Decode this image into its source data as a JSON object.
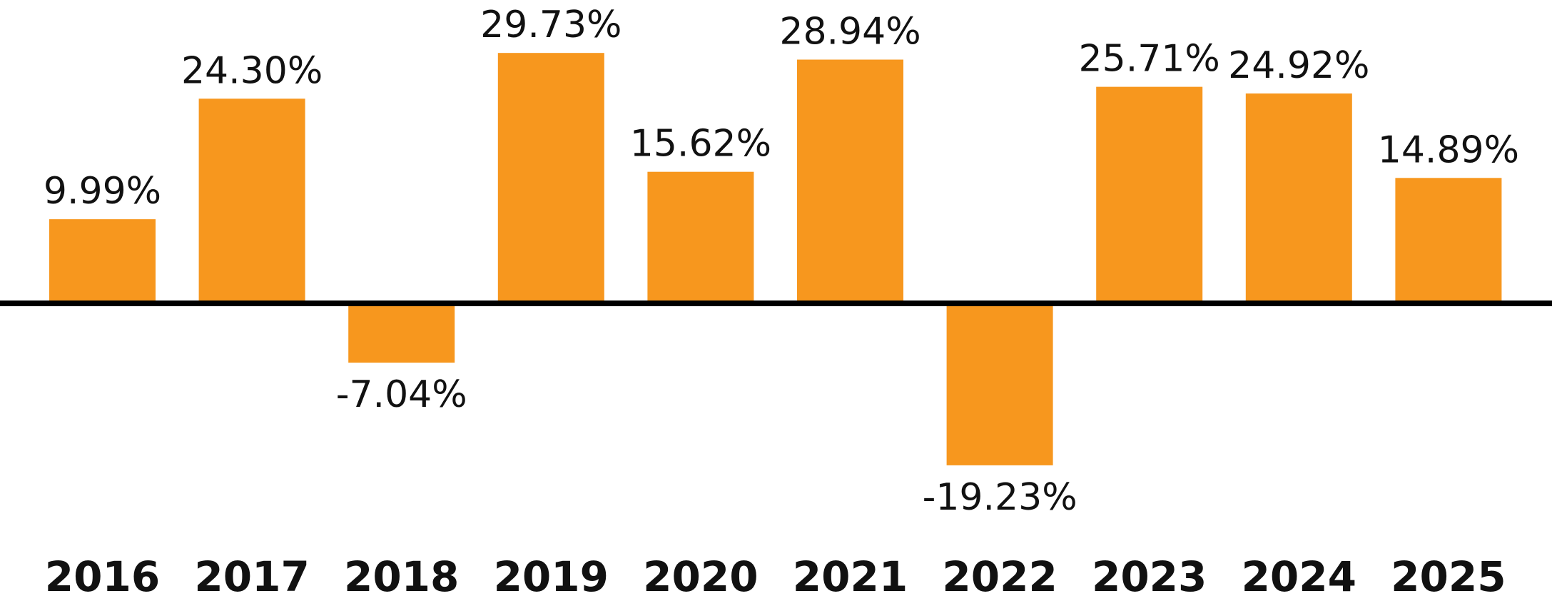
{
  "chart_data": {
    "type": "bar",
    "categories": [
      "2016",
      "2017",
      "2018",
      "2019",
      "2020",
      "2021",
      "2022",
      "2023",
      "2024",
      "2025"
    ],
    "values": [
      9.99,
      24.3,
      -7.04,
      29.73,
      15.62,
      28.94,
      -19.23,
      25.71,
      24.92,
      14.89
    ],
    "value_labels": [
      "9.99%",
      "24.30%",
      "-7.04%",
      "29.73%",
      "15.62%",
      "28.94%",
      "-19.23%",
      "25.71%",
      "24.92%",
      "14.89%"
    ],
    "color": "#f7971e"
  }
}
